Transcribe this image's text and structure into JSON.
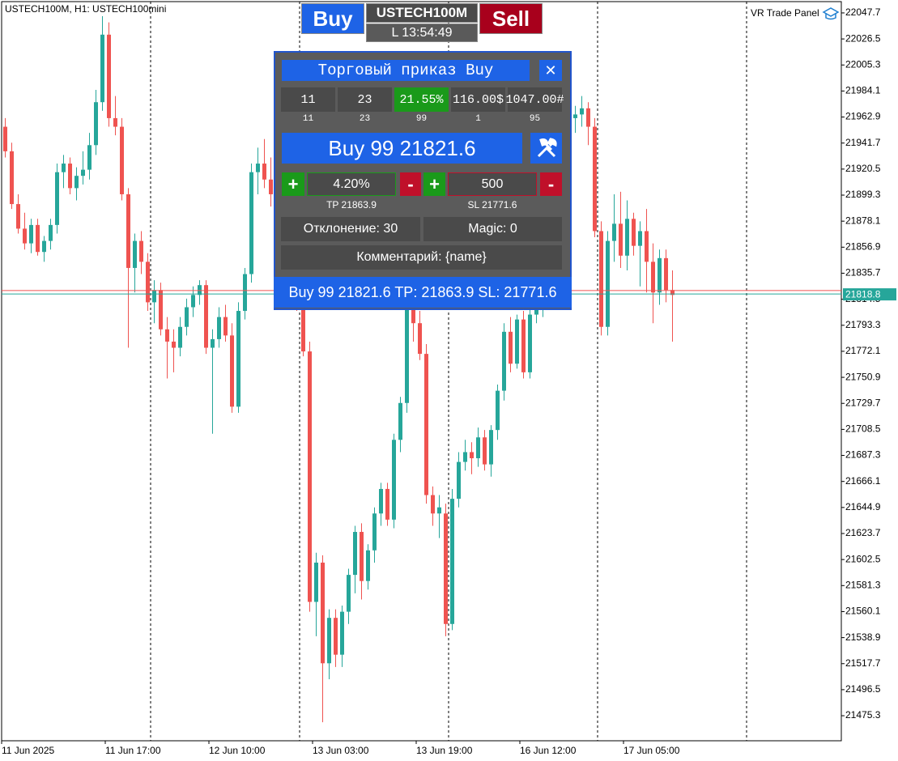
{
  "chart_data": {
    "type": "candlestick",
    "title": "USTECH100M, H1:  USTECH100mini",
    "indicator_label": "VR Trade Panel",
    "categories": [
      "11 Jun 2025",
      null,
      null,
      null,
      null,
      null,
      null,
      null,
      null,
      null,
      null,
      null,
      null,
      null,
      null,
      null,
      "11 Jun 17:00",
      null,
      null,
      null,
      null,
      null,
      null,
      null,
      null,
      null,
      null,
      null,
      null,
      null,
      null,
      null,
      "12 Jun 10:00",
      null,
      null,
      null,
      null,
      null,
      null,
      null,
      null,
      null,
      null,
      null,
      null,
      null,
      null,
      null,
      "13 Jun 03:00",
      null,
      null,
      null,
      null,
      null,
      null,
      null,
      null,
      null,
      null,
      null,
      null,
      null,
      null,
      null,
      "13 Jun 19:00",
      null,
      null,
      null,
      null,
      null,
      null,
      null,
      null,
      null,
      null,
      null,
      null,
      null,
      null,
      null,
      "16 Jun 12:00",
      null,
      null,
      null,
      null,
      null,
      null,
      null,
      null,
      null,
      null,
      null,
      null,
      null,
      null,
      null,
      "17 Jun 05:00",
      null,
      null,
      null,
      null,
      null,
      null,
      null
    ],
    "open": [
      21955,
      21935,
      21892,
      21872,
      21860,
      21875,
      21853,
      21862,
      21875,
      21918,
      21925,
      21905,
      21915,
      21920,
      21940,
      21975,
      22030,
      21962,
      21955,
      21900,
      21840,
      21862,
      21845,
      21812,
      21822,
      21790,
      21780,
      21775,
      21792,
      21808,
      21818,
      21826,
      21775,
      21782,
      21800,
      21785,
      21727,
      21805,
      21835,
      21918,
      21925,
      21912,
      21900,
      21880,
      21860,
      21840,
      21815,
      21772,
      21568,
      21600,
      21518,
      21555,
      21525,
      21560,
      21590,
      21625,
      21585,
      21610,
      21640,
      21660,
      21635,
      21700,
      21730,
      21810,
      21795,
      21770,
      21655,
      21640,
      21640,
      21550,
      21652,
      21682,
      21690,
      21685,
      21702,
      21680,
      21708,
      21740,
      21788,
      21762,
      21798,
      21755,
      21802,
      21835,
      21860,
      21895,
      21925,
      21950,
      21962,
      21965,
      21970,
      21955,
      21870,
      21792,
      21862,
      21876,
      21850,
      21880,
      21858,
      21870,
      21845,
      21820,
      21848,
      21822
    ],
    "high": [
      21962,
      21942,
      21900,
      21885,
      21880,
      21880,
      21866,
      21880,
      21925,
      21932,
      21930,
      21922,
      21935,
      21950,
      21985,
      22045,
      22040,
      21980,
      21962,
      21905,
      21868,
      21870,
      21852,
      21830,
      21828,
      21800,
      21790,
      21800,
      21815,
      21825,
      21830,
      21830,
      21790,
      21808,
      21810,
      21795,
      21812,
      21840,
      21925,
      21938,
      21945,
      21930,
      21915,
      21895,
      21875,
      21850,
      21822,
      21780,
      21608,
      21606,
      21562,
      21562,
      21565,
      21595,
      21630,
      21632,
      21615,
      21645,
      21665,
      21665,
      21705,
      21735,
      21815,
      21830,
      21805,
      21778,
      21662,
      21655,
      21648,
      21660,
      21690,
      21700,
      21698,
      21710,
      21708,
      21712,
      21745,
      21795,
      21800,
      21802,
      21805,
      21810,
      21840,
      21870,
      21900,
      21930,
      21960,
      21975,
      21972,
      21980,
      21975,
      21962,
      21878,
      21870,
      21900,
      21902,
      21895,
      21885,
      21878,
      21888,
      21860,
      21855,
      21855,
      21838
    ],
    "low": [
      21930,
      21888,
      21868,
      21855,
      21852,
      21850,
      21845,
      21855,
      21868,
      21905,
      21900,
      21895,
      21908,
      21912,
      21932,
      21968,
      21955,
      21948,
      21895,
      21775,
      21820,
      21835,
      21805,
      21795,
      21785,
      21750,
      21755,
      21768,
      21785,
      21800,
      21810,
      21770,
      21705,
      21775,
      21780,
      21722,
      21722,
      21798,
      21828,
      21900,
      21905,
      21890,
      21870,
      21850,
      21830,
      21805,
      21768,
      21560,
      21540,
      21470,
      21505,
      21515,
      21515,
      21550,
      21575,
      21570,
      21578,
      21600,
      21630,
      21630,
      21628,
      21690,
      21722,
      21780,
      21765,
      21648,
      21630,
      21620,
      21540,
      21545,
      21645,
      21675,
      21672,
      21678,
      21675,
      21670,
      21700,
      21732,
      21755,
      21758,
      21750,
      21750,
      21795,
      21800,
      21850,
      21880,
      21915,
      21940,
      21950,
      21955,
      21940,
      21865,
      21785,
      21785,
      21845,
      21840,
      21838,
      21850,
      21825,
      21820,
      21795,
      21810,
      21812,
      21780
    ],
    "close": [
      21935,
      21892,
      21872,
      21860,
      21875,
      21853,
      21862,
      21875,
      21918,
      21925,
      21905,
      21915,
      21920,
      21940,
      21975,
      22030,
      21962,
      21955,
      21900,
      21840,
      21862,
      21845,
      21812,
      21822,
      21790,
      21780,
      21775,
      21792,
      21808,
      21818,
      21826,
      21775,
      21782,
      21800,
      21785,
      21727,
      21805,
      21835,
      21918,
      21925,
      21912,
      21900,
      21880,
      21860,
      21840,
      21815,
      21772,
      21568,
      21600,
      21518,
      21555,
      21525,
      21560,
      21590,
      21625,
      21585,
      21610,
      21640,
      21660,
      21635,
      21700,
      21730,
      21810,
      21795,
      21770,
      21655,
      21640,
      21645,
      21550,
      21652,
      21682,
      21690,
      21685,
      21702,
      21680,
      21708,
      21740,
      21788,
      21762,
      21798,
      21755,
      21802,
      21835,
      21860,
      21895,
      21925,
      21950,
      21962,
      21965,
      21970,
      21955,
      21870,
      21792,
      21862,
      21876,
      21850,
      21880,
      21858,
      21870,
      21845,
      21820,
      21848,
      21822,
      21818
    ],
    "up_color": "#26a69a",
    "down_color": "#ef5350",
    "ylim": [
      21454.9,
      22056.9
    ],
    "yticks": [
      22047.7,
      22026.5,
      22005.3,
      21984.1,
      21962.9,
      21941.7,
      21920.5,
      21899.3,
      21878.1,
      21856.9,
      21835.7,
      21814.5,
      21793.3,
      21772.1,
      21750.9,
      21729.7,
      21708.5,
      21687.3,
      21666.1,
      21644.9,
      21623.7,
      21602.5,
      21581.3,
      21560.1,
      21538.9,
      21517.7,
      21496.5,
      21475.3
    ],
    "ask": 21821.6,
    "bid": 21818.8
  },
  "top_widget": {
    "buy": "Buy",
    "symbol": "USTECH100M",
    "sell": "Sell",
    "time": "L 13:54:49"
  },
  "trade_panel": {
    "title": "Торговый приказ Buy",
    "close": "✕",
    "stats": [
      "11",
      "23",
      "21.55%",
      "116.00$",
      "1047.00#"
    ],
    "stat_notes": [
      "11",
      "23",
      "99",
      "1",
      "95"
    ],
    "order_button": "Buy 99 21821.6",
    "plus": "+",
    "minus": "-",
    "tp_value": "4.20%",
    "sl_value": "500",
    "tp_label": "TP 21863.9",
    "sl_label": "SL 21771.6",
    "deviation": "Отклонение: 30",
    "magic": "Magic: 0",
    "comment": "Комментарий: {name}",
    "summary": "Buy 99 21821.6 TP: 21863.9 SL: 21771.6"
  }
}
